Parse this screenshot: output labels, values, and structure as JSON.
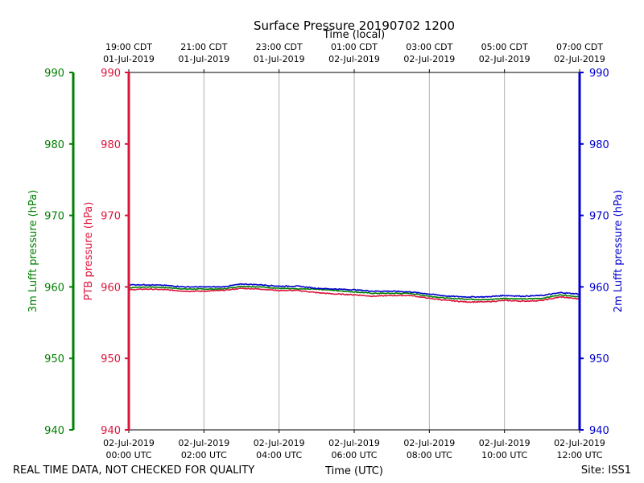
{
  "chart_data": {
    "type": "line",
    "title": "Surface Pressure 20190702 1200",
    "top_axis_label": "Time (local)",
    "xlabel": "Time (UTC)",
    "footer_left": "REAL TIME DATA, NOT CHECKED FOR QUALITY",
    "footer_right": "Site: ISS1",
    "x_range_hours": [
      0,
      12
    ],
    "bottom_ticks": [
      {
        "hour": 0,
        "line1": "02-Jul-2019",
        "line2": "00:00 UTC"
      },
      {
        "hour": 2,
        "line1": "02-Jul-2019",
        "line2": "02:00 UTC"
      },
      {
        "hour": 4,
        "line1": "02-Jul-2019",
        "line2": "04:00 UTC"
      },
      {
        "hour": 6,
        "line1": "02-Jul-2019",
        "line2": "06:00 UTC"
      },
      {
        "hour": 8,
        "line1": "02-Jul-2019",
        "line2": "08:00 UTC"
      },
      {
        "hour": 10,
        "line1": "02-Jul-2019",
        "line2": "10:00 UTC"
      },
      {
        "hour": 12,
        "line1": "02-Jul-2019",
        "line2": "12:00 UTC"
      }
    ],
    "top_ticks": [
      {
        "hour": 0,
        "line1": "19:00 CDT",
        "line2": "01-Jul-2019"
      },
      {
        "hour": 2,
        "line1": "21:00 CDT",
        "line2": "01-Jul-2019"
      },
      {
        "hour": 4,
        "line1": "23:00 CDT",
        "line2": "01-Jul-2019"
      },
      {
        "hour": 6,
        "line1": "01:00 CDT",
        "line2": "02-Jul-2019"
      },
      {
        "hour": 8,
        "line1": "03:00 CDT",
        "line2": "02-Jul-2019"
      },
      {
        "hour": 10,
        "line1": "05:00 CDT",
        "line2": "02-Jul-2019"
      },
      {
        "hour": 12,
        "line1": "07:00 CDT",
        "line2": "02-Jul-2019"
      }
    ],
    "y_axes": [
      {
        "id": "lufft3m",
        "label": "3m Lufft pressure (hPa)",
        "color": "#008000",
        "ylim": [
          940,
          990
        ],
        "ticks": [
          "940",
          "950",
          "960",
          "970",
          "980",
          "990"
        ]
      },
      {
        "id": "ptb",
        "label": "PTB pressure (hPa)",
        "color": "#dc143c",
        "ylim": [
          940,
          990
        ],
        "ticks": [
          "940",
          "950",
          "960",
          "970",
          "980",
          "990"
        ]
      },
      {
        "id": "lufft2m",
        "label": "2m Lufft pressure (hPa)",
        "color": "#0000cd",
        "ylim": [
          940,
          990
        ],
        "ticks": [
          "940",
          "950",
          "960",
          "970",
          "980",
          "990"
        ]
      }
    ],
    "grid": "vertical",
    "series": [
      {
        "axis": "lufft3m",
        "color": "#008000",
        "x": [
          0,
          0.5,
          1,
          1.5,
          2,
          2.5,
          3,
          3.5,
          4,
          4.5,
          5,
          5.5,
          6,
          6.5,
          7,
          7.5,
          8,
          8.5,
          9,
          9.5,
          10,
          10.5,
          11,
          11.5,
          12
        ],
        "y": [
          959.9,
          960.0,
          959.9,
          959.7,
          959.7,
          959.7,
          960.1,
          960.0,
          959.8,
          959.7,
          959.7,
          959.5,
          959.3,
          959.1,
          959.1,
          959.1,
          958.7,
          958.4,
          958.3,
          958.2,
          958.4,
          958.3,
          958.4,
          958.9,
          958.6
        ]
      },
      {
        "axis": "ptb",
        "color": "#dc143c",
        "x": [
          0,
          0.5,
          1,
          1.5,
          2,
          2.5,
          3,
          3.5,
          4,
          4.5,
          5,
          5.5,
          6,
          6.5,
          7,
          7.5,
          8,
          8.5,
          9,
          9.5,
          10,
          10.5,
          11,
          11.5,
          12
        ],
        "y": [
          959.6,
          959.7,
          959.6,
          959.4,
          959.4,
          959.5,
          959.8,
          959.7,
          959.5,
          959.5,
          959.2,
          959.0,
          958.9,
          958.7,
          958.8,
          958.8,
          958.4,
          958.1,
          957.9,
          957.9,
          958.1,
          958.0,
          958.1,
          958.6,
          958.3
        ]
      },
      {
        "axis": "lufft2m",
        "color": "#0000cd",
        "x": [
          0,
          0.5,
          1,
          1.5,
          2,
          2.5,
          3,
          3.5,
          4,
          4.5,
          5,
          5.5,
          6,
          6.5,
          7,
          7.5,
          8,
          8.5,
          9,
          9.5,
          10,
          10.5,
          11,
          11.5,
          12
        ],
        "y": [
          960.3,
          960.3,
          960.2,
          960.0,
          960.0,
          960.0,
          960.4,
          960.3,
          960.1,
          960.1,
          959.8,
          959.7,
          959.6,
          959.4,
          959.4,
          959.3,
          959.0,
          958.7,
          958.6,
          958.6,
          958.8,
          958.7,
          958.8,
          959.2,
          959.0
        ]
      }
    ]
  }
}
